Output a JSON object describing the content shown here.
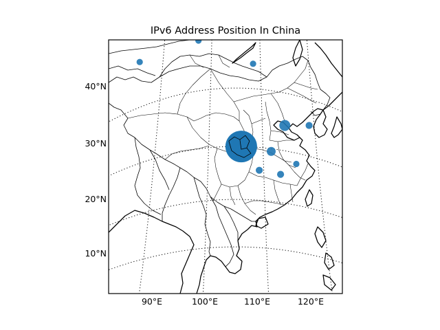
{
  "title": "IPv6 Address Position In China",
  "map": {
    "lon_range": [
      82,
      126
    ],
    "lat_range": [
      3,
      48
    ],
    "meridians": [
      90,
      100,
      110,
      120
    ],
    "parallels": [
      10,
      20,
      30,
      40
    ],
    "meridian_labels": [
      "90°E",
      "100°E",
      "110°E",
      "120°E"
    ],
    "parallel_labels": [
      "10°N",
      "20°N",
      "30°N",
      "40°N"
    ]
  },
  "colors": {
    "marker": "#1f77b4",
    "coastline": "#000000",
    "grid": "#000000"
  },
  "chart_data": {
    "type": "scatter",
    "title": "IPv6 Address Position In China",
    "xlabel": "",
    "ylabel": "",
    "xlim": [
      82,
      126
    ],
    "ylim": [
      3,
      48
    ],
    "points": [
      {
        "lon": 106.0,
        "lat": 30.0,
        "size": 1.0
      },
      {
        "lon": 114.3,
        "lat": 34.5,
        "size": 0.12
      },
      {
        "lon": 111.5,
        "lat": 29.5,
        "size": 0.08
      },
      {
        "lon": 109.2,
        "lat": 25.8,
        "size": 0.05
      },
      {
        "lon": 113.0,
        "lat": 25.5,
        "size": 0.05
      },
      {
        "lon": 119.0,
        "lat": 35.5,
        "size": 0.05
      },
      {
        "lon": 116.0,
        "lat": 28.0,
        "size": 0.04
      },
      {
        "lon": 85.0,
        "lat": 47.5,
        "size": 0.04
      },
      {
        "lon": 97.2,
        "lat": 48.0,
        "size": 0.04
      },
      {
        "lon": 108.5,
        "lat": 44.0,
        "size": 0.04
      }
    ]
  }
}
